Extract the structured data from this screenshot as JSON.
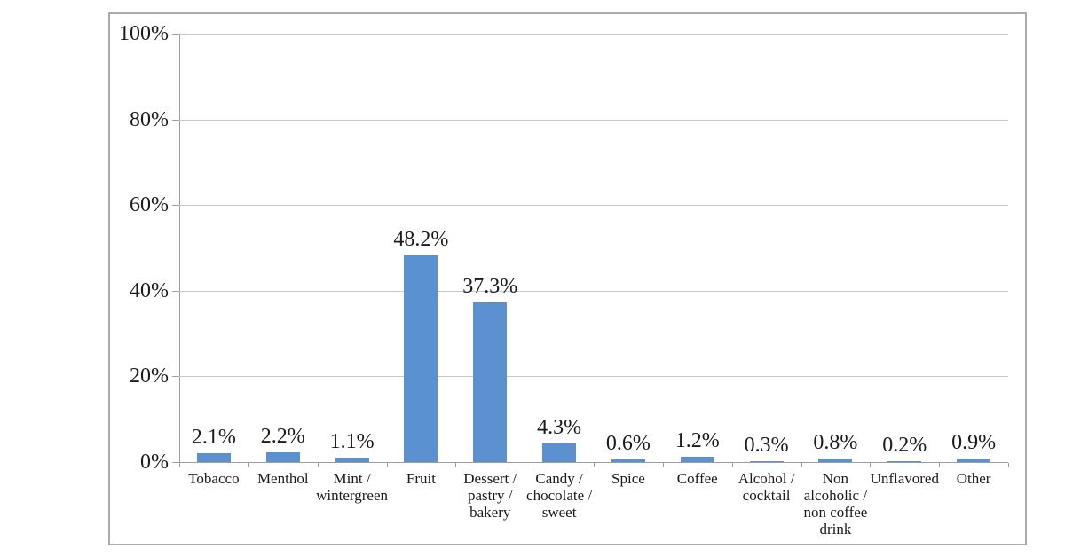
{
  "chart_data": {
    "type": "bar",
    "title": "",
    "xlabel": "",
    "ylabel": "",
    "categories": [
      "Tobacco",
      "Menthol",
      "Mint / wintergreen",
      "Fruit",
      "Dessert / pastry / bakery",
      "Candy / chocolate / sweet",
      "Spice",
      "Coffee",
      "Alcohol / cocktail",
      "Non alcoholic / non coffee drink",
      "Unflavored",
      "Other"
    ],
    "category_label_lines": [
      [
        "Tobacco"
      ],
      [
        "Menthol"
      ],
      [
        "Mint /",
        "wintergreen"
      ],
      [
        "Fruit"
      ],
      [
        "Dessert /",
        "pastry /",
        "bakery"
      ],
      [
        "Candy /",
        "chocolate /",
        "sweet"
      ],
      [
        "Spice"
      ],
      [
        "Coffee"
      ],
      [
        "Alcohol /",
        "cocktail"
      ],
      [
        "Non",
        "alcoholic /",
        "non coffee",
        "drink"
      ],
      [
        "Unflavored"
      ],
      [
        "Other"
      ]
    ],
    "values": [
      2.1,
      2.2,
      1.1,
      48.2,
      37.3,
      4.3,
      0.6,
      1.2,
      0.3,
      0.8,
      0.2,
      0.9
    ],
    "value_labels": [
      "2.1%",
      "2.2%",
      "1.1%",
      "48.2%",
      "37.3%",
      "4.3%",
      "0.6%",
      "1.2%",
      "0.3%",
      "0.8%",
      "0.2%",
      "0.9%"
    ],
    "y_ticks": [
      "0%",
      "20%",
      "40%",
      "60%",
      "80%",
      "100%"
    ],
    "y_tick_values": [
      0,
      20,
      40,
      60,
      80,
      100
    ],
    "ylim": [
      0,
      100
    ],
    "grid": true,
    "legend": "none",
    "bar_color": "#5b91d0",
    "gridline_color": "#c9c9c9",
    "axis_color": "#9e9e9e",
    "text_color": "#1b1b1b"
  }
}
